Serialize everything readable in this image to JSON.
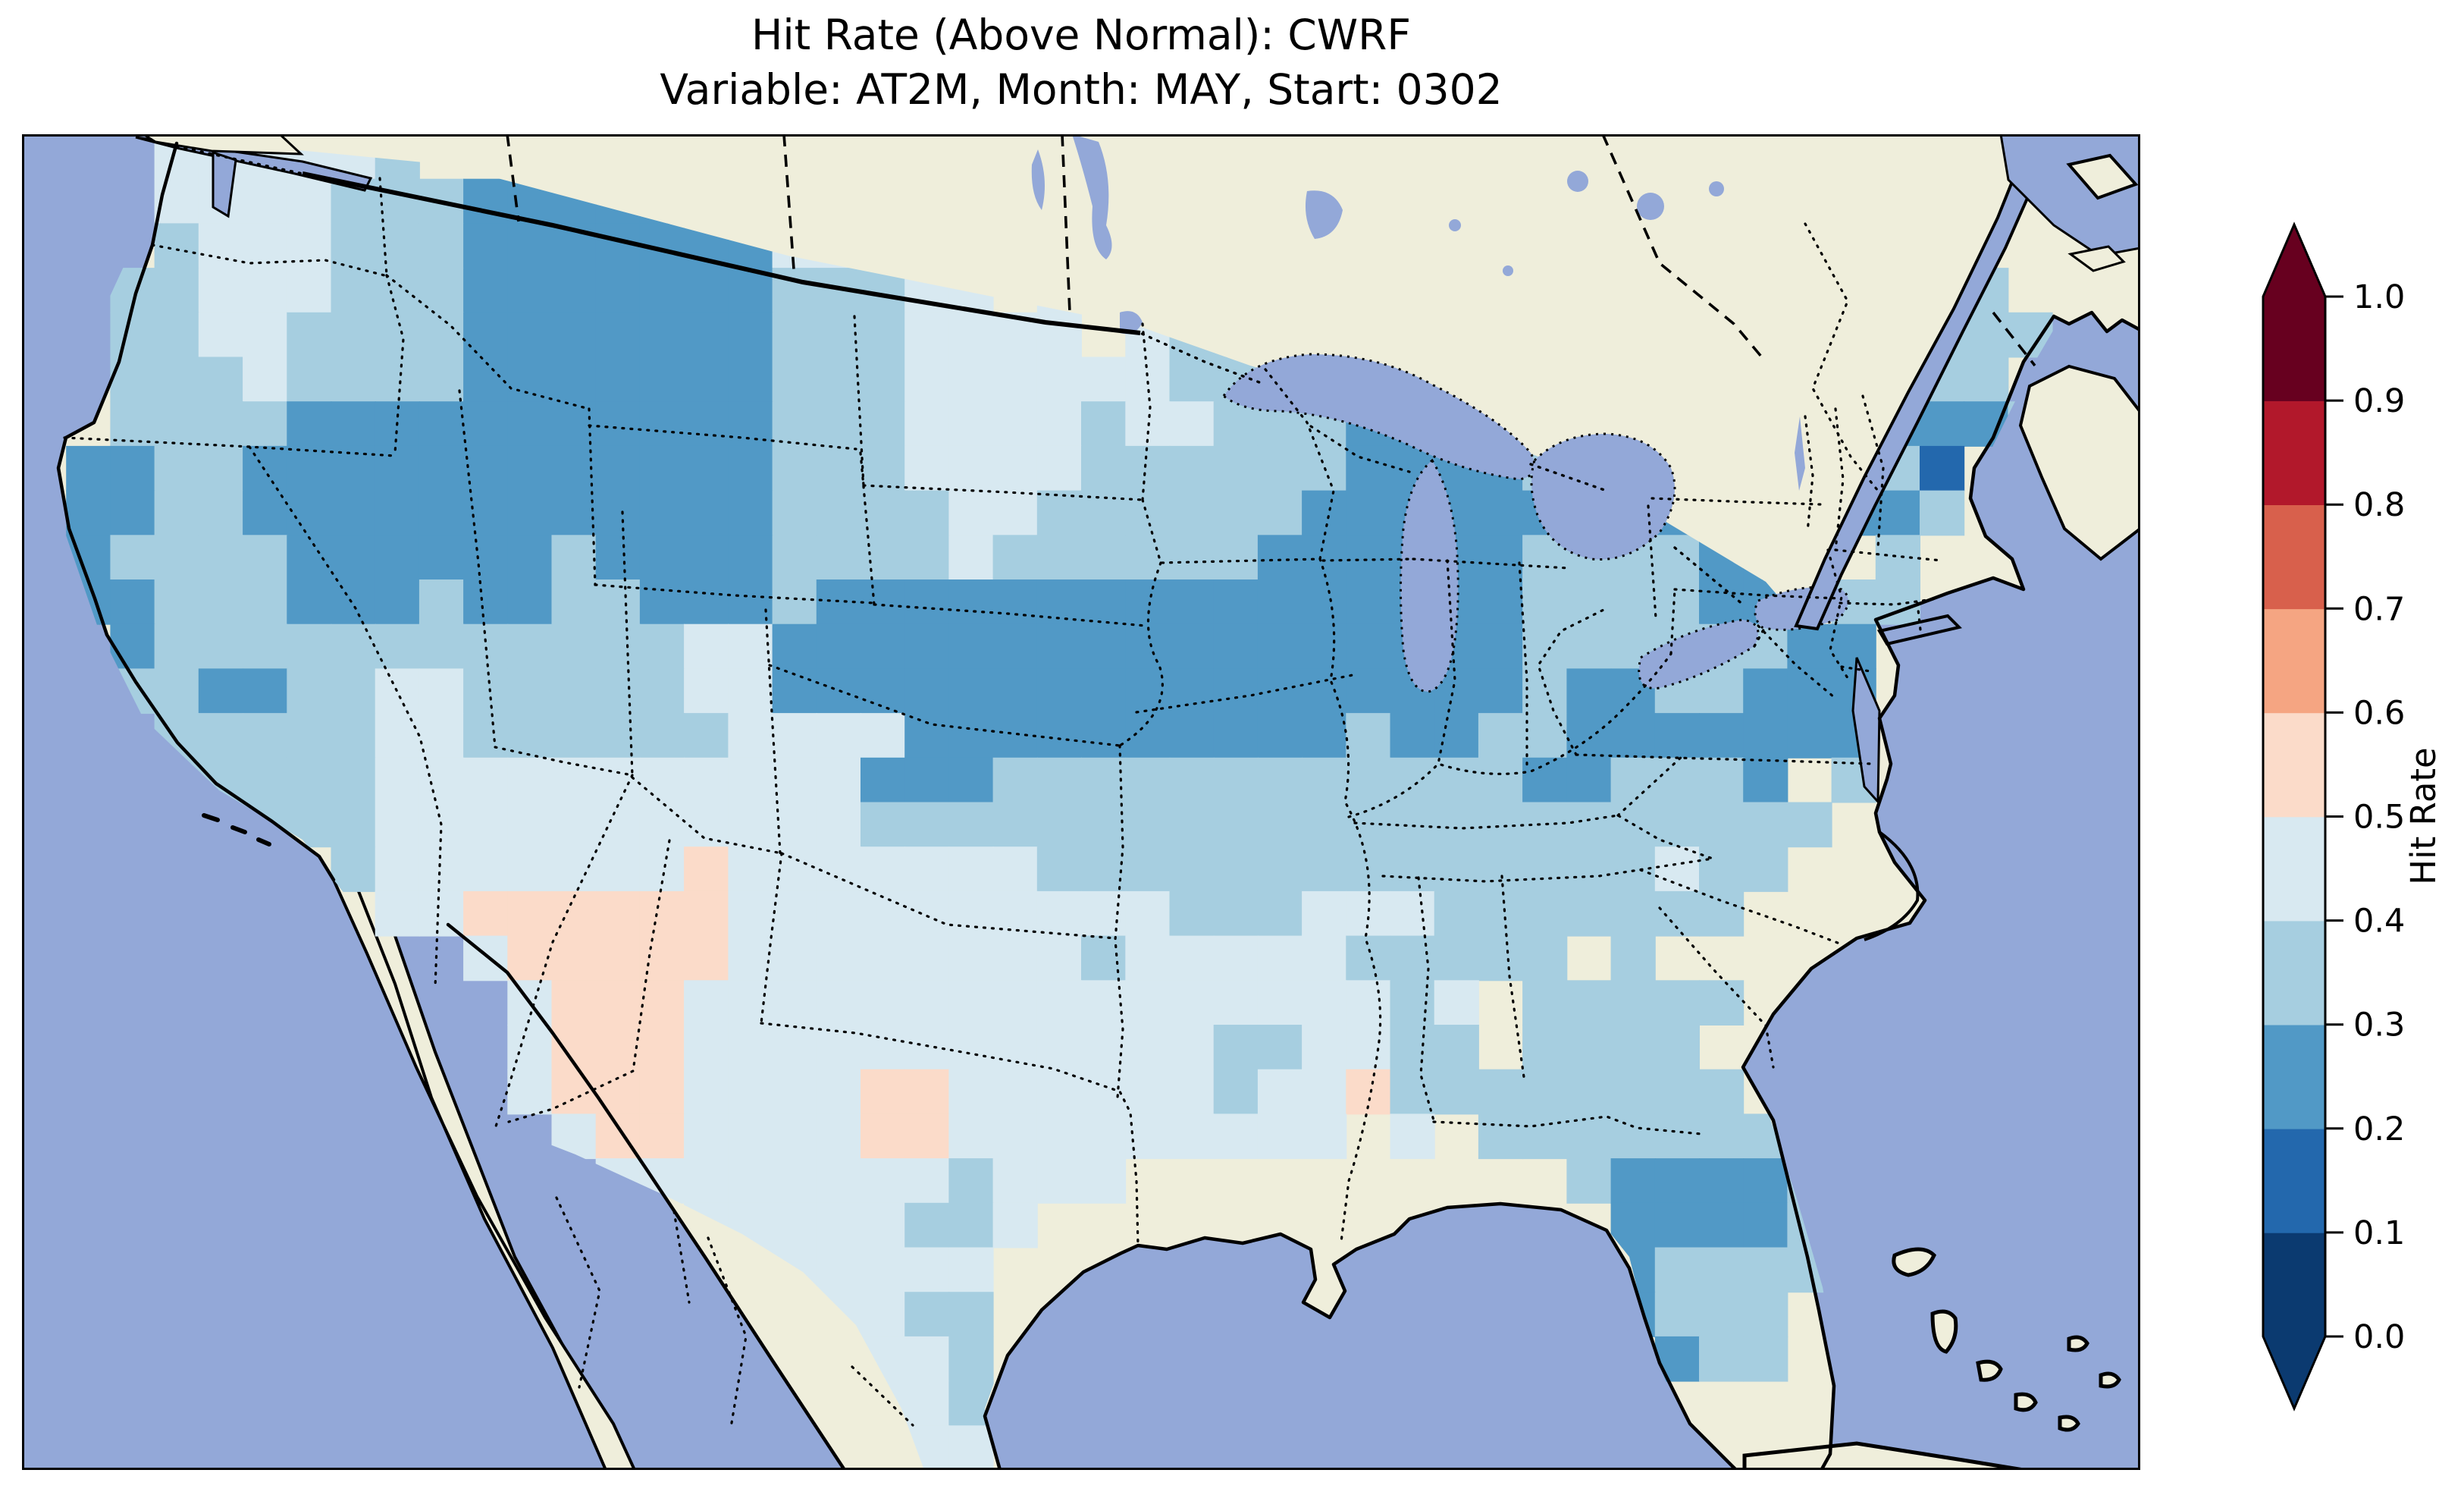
{
  "title": {
    "line1": "Hit Rate (Above Normal): CWRF",
    "line2": "Variable: AT2M, Month: MAY, Start: 0302"
  },
  "colorbar": {
    "label": "Hit Rate",
    "ticks_top_to_bottom": [
      "1.0",
      "0.9",
      "0.8",
      "0.7",
      "0.6",
      "0.5",
      "0.4",
      "0.3",
      "0.2",
      "0.1",
      "0.0"
    ],
    "bin_colors_bottom_to_top": [
      "#0b3a70",
      "#2368ad",
      "#5199c6",
      "#a6cee0",
      "#d8e9f1",
      "#fbdbc9",
      "#f5a582",
      "#d8604c",
      "#b2182b",
      "#67001f"
    ],
    "under_arrow_color": "#0b3a70",
    "over_arrow_color": "#67001f"
  },
  "map": {
    "ocean_color": "#93a8d8",
    "land_color": "#efeedb",
    "lake_color": "#93a8d8",
    "coast_color": "#000000",
    "grid": {
      "cols": 48,
      "rows": [
        "...444443.......................................",
        "...4444333222222244......................23.....",
        "...3444333222222244 3...................2233....",
        "..33444333222222233344 44...............23333...",
        "..3344333322222223334444 43333...........22333...",
        "..333433332222222333444444333322......2223333...",
        "..33332222222222233344443443332223....3222222333....",
        ".2233222222222222333444433333322223222222231....",
        ".2233222222222222333344333333222222322222223.....",
        ".2333322222232222333343333332222223333222 3......",
        ".223332223223322232222222222222222333322 33......",
        "..2333333333333442222222222222222233333322......",
        "..3322334433333442222222222222222232233222 22......",
        "...333334433333344442222222222322332222222......",
        "...3333344444444444222333333333333223332 3.......",
        "....3333444444444443333333333333333333333........",
        ".......344444445444444433333333333333433.........",
        "........4455555544444444443334443333333.........",
        "..........4555554444444434444433333 3..........",
        "...........4555444444444444444434 33333...........",
        "...........4555444444444444334433 3333...........",
        "...........4555444455444444344533333333.........",
        "............455444455444444444 4.33333333........",
        ".............444444443444..........322223.......",
        "...............44444334.............22223.......",
        "................444444..............23333.......",
        ".................44433..............2333........",
        "..................4443...............233........",
        "...................443..........................",
        "....................44.........................."
      ],
      "cell_w": 58.21,
      "cell_h": 58.7,
      "palette": {
        "1": "#2368ad",
        "2": "#5199c6",
        "3": "#a6cee0",
        "4": "#d8e9f1",
        "5": "#fbdbc9"
      }
    }
  },
  "chart_data": {
    "type": "heatmap",
    "title": "Hit Rate (Above Normal): CWRF",
    "subtitle": "Variable: AT2M, Month: MAY, Start: 0302",
    "colorbar_label": "Hit Rate",
    "colorbar_ticks": [
      0.0,
      0.1,
      0.2,
      0.3,
      0.4,
      0.5,
      0.6,
      0.7,
      0.8,
      0.9,
      1.0
    ],
    "color_scale": {
      "name": "RdBu_r, 10 discrete bins with extend arrows",
      "bins": [
        {
          "range": "0.0-0.1",
          "color": "#0b3a70"
        },
        {
          "range": "0.1-0.2",
          "color": "#2368ad"
        },
        {
          "range": "0.2-0.3",
          "color": "#5199c6"
        },
        {
          "range": "0.3-0.4",
          "color": "#a6cee0"
        },
        {
          "range": "0.4-0.5",
          "color": "#d8e9f1"
        },
        {
          "range": "0.5-0.6",
          "color": "#fbdbc9"
        },
        {
          "range": "0.6-0.7",
          "color": "#f5a582"
        },
        {
          "range": "0.7-0.8",
          "color": "#d8604c"
        },
        {
          "range": "0.8-0.9",
          "color": "#b2182b"
        },
        {
          "range": "0.9-1.0",
          "color": "#67001f"
        }
      ]
    },
    "map_extent": "Continental United States with southern Canada, northern Mexico, Bahamas and Cuba visible; ocean and non-US land carry no data",
    "observed_regional_hit_rates": [
      {
        "region": "Pacific Northwest (WA/OR)",
        "hit_rate": "0.3-0.5"
      },
      {
        "region": "Montana / Wyoming / Idaho Rockies",
        "hit_rate": "0.2-0.3"
      },
      {
        "region": "Great Basin (NV, W UT)",
        "hit_rate": "0.2-0.3"
      },
      {
        "region": "California coast",
        "hit_rate": "0.2-0.3"
      },
      {
        "region": "Dakotas",
        "hit_rate": "0.3-0.5"
      },
      {
        "region": "Central Plains belt (NE, N KS, IA, MO, IL, IN)",
        "hit_rate": "0.2-0.3"
      },
      {
        "region": "Great Lakes / Michigan / Wisconsin",
        "hit_rate": "0.2-0.3"
      },
      {
        "region": "Northeast (NY, New England)",
        "hit_rate": "0.2-0.3 with one 0.1-0.2 cell near Cape Cod"
      },
      {
        "region": "Virginia / Mid-Atlantic band",
        "hit_rate": "0.2-0.3"
      },
      {
        "region": "Southeast (TN, AL, GA, Carolinas)",
        "hit_rate": "0.3-0.4"
      },
      {
        "region": "Central Florida",
        "hit_rate": "0.2-0.3"
      },
      {
        "region": "Gulf Coast, Texas, Oklahoma, Lower Mississippi",
        "hit_rate": "0.4-0.5"
      },
      {
        "region": "New Mexico / far west Texas / SE Arizona",
        "hit_rate": "0.5-0.6 (only region above 0.5)"
      }
    ]
  }
}
